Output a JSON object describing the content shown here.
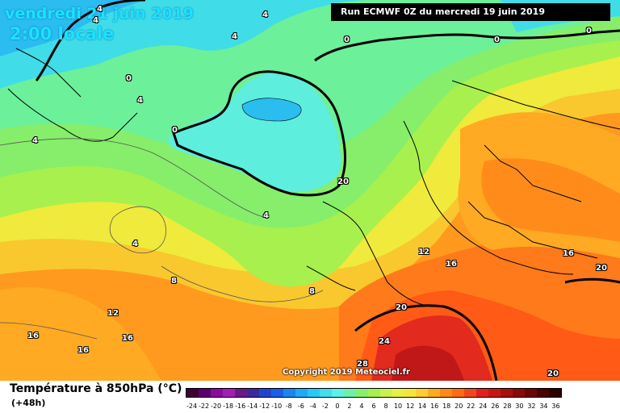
{
  "header": {
    "date": "vendredi 21 juin 2019",
    "time": "2:00 locale",
    "run": "Run ECMWF 0Z du mercredi 19 juin 2019"
  },
  "copyright": "Copyright 2019 Meteociel.fr",
  "legend": {
    "title": "Température à 850hPa (°C)",
    "lead": "(+48h)",
    "ticks": [
      "-24",
      "-22",
      "-20",
      "-18",
      "-16",
      "-14",
      "-12",
      "-10",
      "-8",
      "-6",
      "-4",
      "-2",
      "0",
      "2",
      "4",
      "6",
      "8",
      "10",
      "12",
      "14",
      "16",
      "18",
      "20",
      "22",
      "24",
      "26",
      "28",
      "30",
      "32",
      "34",
      "36"
    ],
    "colors": [
      "#3d0036",
      "#5a006c",
      "#8a0a9c",
      "#a020b0",
      "#6a1a88",
      "#3a2a9c",
      "#2244cc",
      "#1a5fe6",
      "#1c86f0",
      "#20aaf6",
      "#2ac8f6",
      "#44ddee",
      "#5df0e6",
      "#6ef0a8",
      "#86f06e",
      "#a6f050",
      "#c8f050",
      "#e6f046",
      "#f6e63c",
      "#ffcc33",
      "#ffaa22",
      "#ff8a1a",
      "#ff6a14",
      "#f0461a",
      "#e02020",
      "#c81616",
      "#a81010",
      "#880a0a",
      "#6a0606",
      "#4a0202",
      "#2a0000"
    ]
  },
  "isotherm_labels": [
    "4",
    "4",
    "4",
    "0",
    "0",
    "0",
    "0",
    "4",
    "4",
    "4",
    "0",
    "4",
    "8",
    "4",
    "8",
    "12",
    "12",
    "16",
    "16",
    "20",
    "16",
    "20",
    "16",
    "16",
    "24",
    "28",
    "20",
    "20"
  ]
}
